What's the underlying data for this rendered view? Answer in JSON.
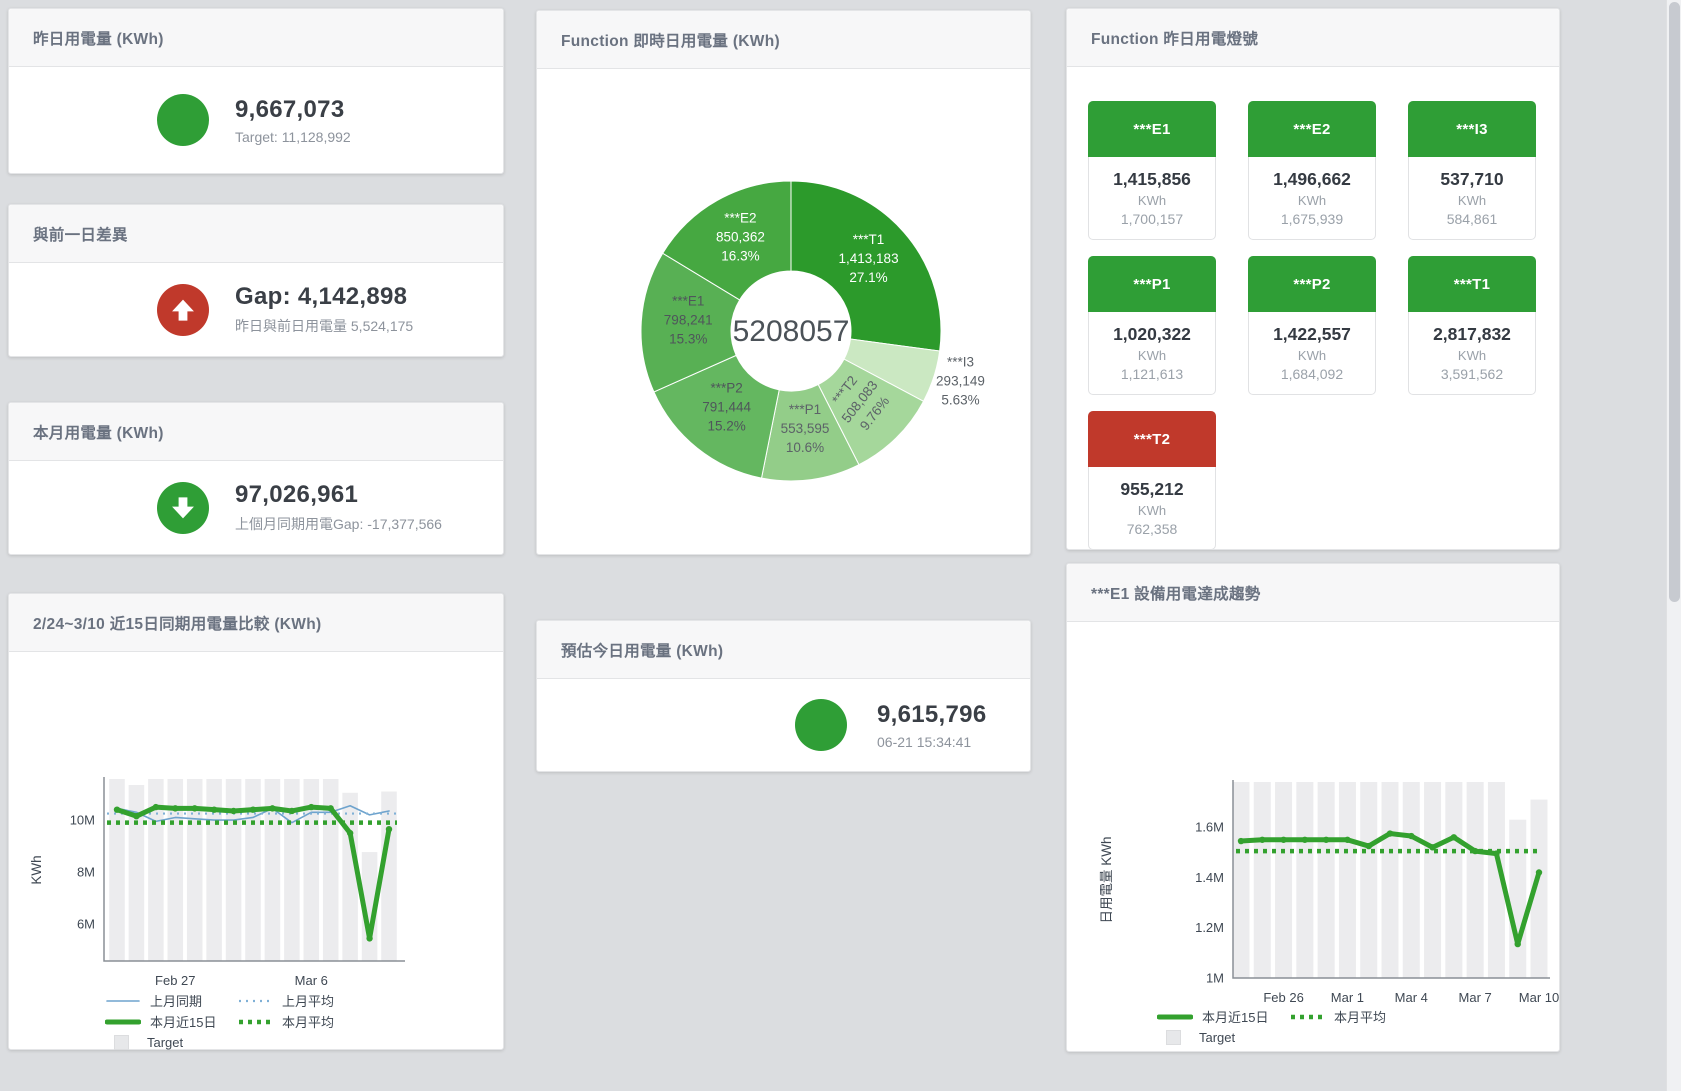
{
  "colors": {
    "green": "#2f9e36",
    "red": "#c0392b",
    "blue_line": "#6ea3cd",
    "green_line": "#33a12e",
    "target_gray": "#ececee"
  },
  "stats": {
    "yesterday": {
      "title": "昨日用電量 (KWh)",
      "value": "9,667,073",
      "subtitle": "Target: 11,128,992"
    },
    "gap": {
      "title": "與前一日差異",
      "value": "Gap: 4,142,898",
      "subtitle": "昨日與前日用電量 5,524,175"
    },
    "month": {
      "title": "本月用電量 (KWh)",
      "value": "97,026,961",
      "subtitle": "上個月同期用電Gap: -17,377,566"
    },
    "estimate": {
      "title": "預估今日用電量 (KWh)",
      "value": "9,615,796",
      "subtitle": "06-21 15:34:41"
    }
  },
  "lamp_panel": {
    "title": "Function 昨日用電燈號",
    "tiles": [
      {
        "label": "***E1",
        "value": "1,415,856",
        "unit": "KWh",
        "target": "1,700,157",
        "status": "green"
      },
      {
        "label": "***E2",
        "value": "1,496,662",
        "unit": "KWh",
        "target": "1,675,939",
        "status": "green"
      },
      {
        "label": "***I3",
        "value": "537,710",
        "unit": "KWh",
        "target": "584,861",
        "status": "green"
      },
      {
        "label": "***P1",
        "value": "1,020,322",
        "unit": "KWh",
        "target": "1,121,613",
        "status": "green"
      },
      {
        "label": "***P2",
        "value": "1,422,557",
        "unit": "KWh",
        "target": "1,684,092",
        "status": "green"
      },
      {
        "label": "***T1",
        "value": "2,817,832",
        "unit": "KWh",
        "target": "3,591,562",
        "status": "green"
      },
      {
        "label": "***T2",
        "value": "955,212",
        "unit": "KWh",
        "target": "762,358",
        "status": "red"
      }
    ]
  },
  "chart_data": [
    {
      "type": "pie",
      "title": "Function 即時日用電量 (KWh)",
      "center_total": "5208057",
      "slices": [
        {
          "name": "***T1",
          "value": 1413183,
          "value_label": "1,413,183",
          "pct": "27.1%",
          "color": "#2c9a2b",
          "label_color": "#ffffff"
        },
        {
          "name": "***I3",
          "value": 293149,
          "value_label": "293,149",
          "pct": "5.63%",
          "color": "#cbe8c2",
          "label_color": "#5c6268",
          "outside": true
        },
        {
          "name": "***T2",
          "value": 508083,
          "value_label": "508,083",
          "pct": "9.76%",
          "color": "#a5d79b",
          "label_color": "#5c6268",
          "rotate": -52
        },
        {
          "name": "***P1",
          "value": 553595,
          "value_label": "553,595",
          "pct": "10.6%",
          "color": "#93cd89",
          "label_color": "#5c6268"
        },
        {
          "name": "***P2",
          "value": 791444,
          "value_label": "791,444",
          "pct": "15.2%",
          "color": "#64b760",
          "label_color": "#4f555b"
        },
        {
          "name": "***E1",
          "value": 798241,
          "value_label": "798,241",
          "pct": "15.3%",
          "color": "#58b054",
          "label_color": "#4f555b"
        },
        {
          "name": "***E2",
          "value": 850362,
          "value_label": "850,362",
          "pct": "16.3%",
          "color": "#46a841",
          "label_color": "#ffffff"
        }
      ]
    },
    {
      "type": "line",
      "title": "2/24~3/10 近15日同期用電量比較 (KWh)",
      "ylabel": "KWh",
      "ylim": [
        4.58,
        11.58
      ],
      "yticks": [
        {
          "v": 6,
          "label": "6M"
        },
        {
          "v": 8,
          "label": "8M"
        },
        {
          "v": 10,
          "label": "10M"
        }
      ],
      "xticks": [
        {
          "i": 3,
          "label": "Feb 27"
        },
        {
          "i": 10,
          "label": "Mar 6"
        }
      ],
      "target_name": "Target",
      "target": [
        11.7,
        11.35,
        11.7,
        11.7,
        11.7,
        11.7,
        11.7,
        11.7,
        11.7,
        11.7,
        11.7,
        11.7,
        11.05,
        8.77,
        11.1
      ],
      "series": [
        {
          "name": "上月同期",
          "color": "#6ea3cd",
          "width": 1.6,
          "dash": "",
          "values": [
            10.45,
            10.3,
            9.95,
            10.1,
            10.05,
            10.0,
            10.0,
            10.1,
            10.45,
            9.9,
            10.3,
            10.3,
            10.55,
            10.2,
            10.35
          ]
        },
        {
          "name": "上月平均",
          "color": "#7fb0d6",
          "width": 2.2,
          "dash": "2 5",
          "const": 10.25
        },
        {
          "name": "本月近15日",
          "color": "#33a12e",
          "width": 5,
          "dash": "",
          "markers": true,
          "values": [
            10.4,
            10.15,
            10.5,
            10.45,
            10.45,
            10.4,
            10.35,
            10.4,
            10.45,
            10.35,
            10.5,
            10.45,
            9.5,
            5.45,
            9.65
          ]
        },
        {
          "name": "本月平均",
          "color": "#33a12e",
          "width": 4.5,
          "dash": "4 5",
          "const": 9.9
        }
      ],
      "legend_rows": [
        [
          0,
          1
        ],
        [
          2,
          3
        ],
        [
          "target"
        ]
      ]
    },
    {
      "type": "line",
      "title": "***E1 設備用電達成趨勢",
      "ylabel": "日用電量 KWh",
      "ylim": [
        1.0,
        1.78
      ],
      "yticks": [
        {
          "v": 1,
          "label": "1M"
        },
        {
          "v": 1.2,
          "label": "1.2M"
        },
        {
          "v": 1.4,
          "label": "1.4M"
        },
        {
          "v": 1.6,
          "label": "1.6M"
        }
      ],
      "xticks": [
        {
          "i": 2,
          "label": "Feb 26"
        },
        {
          "i": 5,
          "label": "Mar 1"
        },
        {
          "i": 8,
          "label": "Mar 4"
        },
        {
          "i": 11,
          "label": "Mar 7"
        },
        {
          "i": 14,
          "label": "Mar 10"
        }
      ],
      "target_name": "Target",
      "target": [
        1.8,
        1.8,
        1.8,
        1.8,
        1.8,
        1.8,
        1.8,
        1.8,
        1.8,
        1.8,
        1.8,
        1.8,
        1.8,
        1.63,
        1.71
      ],
      "series": [
        {
          "name": "本月近15日",
          "color": "#33a12e",
          "width": 5,
          "dash": "",
          "markers": true,
          "values": [
            1.545,
            1.55,
            1.55,
            1.55,
            1.55,
            1.55,
            1.525,
            1.575,
            1.565,
            1.52,
            1.56,
            1.505,
            1.495,
            1.135,
            1.42
          ]
        },
        {
          "name": "本月平均",
          "color": "#33a12e",
          "width": 4.5,
          "dash": "4 5",
          "const": 1.505
        }
      ],
      "legend_rows": [
        [
          0,
          1
        ],
        [
          "target"
        ]
      ]
    }
  ]
}
